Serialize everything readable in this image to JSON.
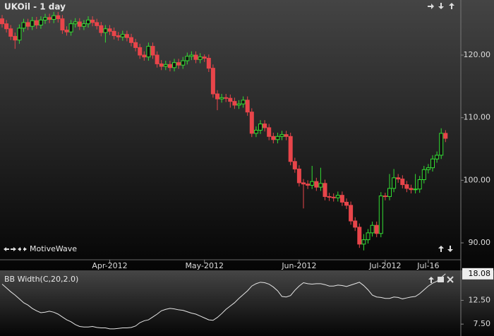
{
  "chart_data": [
    {
      "type": "candlestick",
      "title": "UKOil - 1 day",
      "footer": "MotiveWave",
      "up_color": "#33dd33",
      "down_color": "#e8454a",
      "categories": [
        null,
        null,
        null,
        null,
        null,
        null,
        null,
        null,
        null,
        null,
        null,
        null,
        null,
        null,
        null,
        null,
        null,
        null,
        null,
        null,
        null,
        null,
        null,
        null,
        null,
        "Apr-2012",
        null,
        null,
        null,
        null,
        null,
        null,
        null,
        null,
        null,
        null,
        null,
        null,
        null,
        null,
        null,
        null,
        null,
        null,
        null,
        null,
        null,
        "May-2012",
        null,
        null,
        null,
        null,
        null,
        null,
        null,
        null,
        null,
        null,
        null,
        null,
        null,
        null,
        null,
        null,
        null,
        null,
        null,
        null,
        null,
        "Jun-2012",
        null,
        null,
        null,
        null,
        null,
        null,
        null,
        null,
        null,
        null,
        null,
        null,
        null,
        null,
        null,
        null,
        null,
        null,
        null,
        "Jul-2012",
        null,
        null,
        null,
        null,
        null,
        null,
        null,
        null,
        null,
        "Jul-16",
        null,
        null,
        null,
        null
      ],
      "open": [
        125.8,
        125.0,
        124.2,
        123.0,
        122.4,
        124.3,
        125.2,
        124.6,
        125.5,
        124.8,
        125.6,
        126.0,
        125.7,
        126.3,
        125.8,
        124.0,
        123.7,
        125.0,
        125.3,
        124.6,
        125.0,
        125.6,
        125.2,
        124.7,
        123.6,
        124.2,
        123.8,
        123.1,
        122.9,
        123.3,
        122.8,
        122.0,
        121.2,
        120.0,
        119.7,
        121.4,
        120.0,
        118.6,
        118.2,
        118.5,
        118.0,
        118.8,
        118.4,
        119.1,
        119.8,
        120.0,
        119.3,
        119.7,
        119.5,
        117.9,
        113.8,
        113.0,
        113.2,
        113.1,
        112.6,
        112.0,
        112.2,
        112.8,
        110.9,
        107.5,
        108.0,
        109.0,
        108.4,
        107.0,
        106.5,
        107.0,
        107.3,
        107.0,
        103.0,
        101.8,
        99.6,
        99.4,
        99.2,
        99.8,
        98.9,
        99.5,
        97.4,
        97.3,
        97.2,
        97.6,
        96.5,
        96.0,
        93.5,
        92.5,
        89.8,
        90.5,
        91.6,
        92.8,
        91.5,
        97.5,
        97.4,
        98.7,
        100.4,
        100.2,
        99.3,
        98.7,
        98.5,
        98.6,
        100.1,
        101.7,
        102.0,
        103.4,
        104.0,
        107.5
      ],
      "high": [
        126.4,
        125.6,
        124.8,
        123.6,
        124.9,
        125.8,
        125.8,
        126.1,
        126.1,
        126.2,
        126.6,
        126.6,
        126.9,
        126.9,
        126.4,
        124.6,
        125.6,
        125.9,
        125.9,
        125.6,
        126.2,
        126.2,
        125.8,
        125.3,
        124.8,
        124.8,
        124.4,
        123.7,
        123.9,
        123.9,
        123.4,
        122.6,
        121.8,
        120.6,
        122.0,
        122.0,
        120.6,
        119.2,
        119.1,
        119.1,
        119.4,
        119.4,
        119.7,
        120.4,
        120.6,
        120.6,
        120.3,
        120.1,
        120.1,
        118.5,
        114.4,
        113.8,
        113.8,
        113.7,
        113.2,
        112.8,
        113.4,
        113.4,
        111.5,
        108.6,
        109.6,
        109.6,
        109.0,
        107.6,
        107.6,
        107.9,
        107.9,
        107.6,
        103.6,
        102.4,
        100.2,
        100.0,
        102.3,
        100.4,
        102.0,
        100.1,
        98.0,
        97.9,
        98.2,
        98.2,
        97.1,
        96.6,
        94.1,
        93.1,
        91.4,
        92.2,
        93.4,
        93.4,
        98.1,
        98.0,
        101.0,
        101.8,
        101.0,
        100.8,
        99.9,
        99.3,
        101.0,
        100.7,
        102.3,
        102.6,
        104.0,
        104.6,
        108.3,
        108.0
      ],
      "low": [
        124.4,
        123.6,
        122.4,
        121.0,
        121.8,
        123.7,
        124.0,
        124.0,
        124.2,
        124.2,
        125.0,
        125.1,
        125.1,
        125.2,
        123.4,
        123.1,
        123.1,
        124.4,
        124.0,
        124.0,
        124.4,
        124.6,
        124.1,
        123.0,
        122.0,
        123.2,
        122.5,
        122.3,
        122.3,
        122.2,
        121.4,
        120.6,
        119.4,
        119.1,
        119.1,
        119.4,
        118.0,
        117.6,
        117.6,
        117.4,
        117.4,
        117.8,
        117.8,
        118.5,
        119.2,
        118.7,
        118.7,
        118.9,
        117.3,
        113.2,
        111.2,
        112.4,
        112.5,
        111.6,
        111.4,
        111.4,
        111.6,
        110.3,
        106.9,
        106.9,
        107.4,
        107.8,
        106.4,
        105.9,
        105.9,
        106.4,
        106.4,
        102.4,
        101.2,
        99.0,
        95.5,
        98.6,
        98.6,
        98.3,
        98.3,
        96.8,
        96.7,
        96.6,
        96.6,
        95.9,
        95.4,
        92.9,
        91.9,
        89.2,
        88.8,
        89.9,
        91.0,
        90.9,
        90.9,
        96.8,
        96.8,
        98.1,
        99.6,
        98.7,
        98.1,
        97.9,
        97.9,
        98.0,
        99.5,
        101.1,
        101.4,
        102.8,
        103.4,
        106.1
      ],
      "close": [
        125.0,
        124.2,
        123.0,
        122.4,
        124.3,
        125.2,
        124.6,
        125.5,
        124.8,
        125.6,
        126.0,
        125.7,
        126.3,
        125.8,
        124.0,
        123.7,
        125.0,
        125.3,
        124.6,
        125.0,
        125.6,
        125.2,
        124.7,
        123.6,
        124.2,
        123.8,
        123.1,
        122.9,
        123.3,
        122.8,
        122.0,
        121.2,
        120.0,
        119.7,
        121.4,
        120.0,
        118.6,
        118.2,
        118.5,
        118.0,
        118.8,
        118.4,
        119.1,
        119.8,
        120.0,
        119.3,
        119.7,
        119.5,
        117.9,
        113.8,
        113.0,
        113.2,
        113.1,
        112.6,
        112.0,
        112.2,
        112.8,
        110.9,
        107.5,
        108.0,
        109.0,
        108.4,
        107.0,
        106.5,
        107.0,
        107.3,
        107.0,
        103.0,
        101.8,
        99.6,
        99.4,
        99.2,
        99.8,
        98.9,
        99.5,
        97.4,
        97.3,
        97.2,
        97.6,
        96.5,
        96.0,
        93.5,
        92.5,
        89.8,
        90.5,
        91.6,
        92.8,
        91.5,
        97.5,
        97.4,
        98.7,
        100.4,
        100.2,
        99.3,
        98.7,
        98.5,
        98.6,
        100.1,
        101.7,
        102.0,
        103.4,
        104.0,
        107.5,
        106.7
      ],
      "ylim": [
        87.3,
        128.8
      ],
      "yticks": [
        {
          "value": 90,
          "label": "90.00"
        },
        {
          "value": 100,
          "label": "100.00"
        },
        {
          "value": 110,
          "label": "110.00"
        },
        {
          "value": 120,
          "label": "120.00"
        }
      ]
    },
    {
      "type": "line",
      "title": "BB Width(C,20,2.0)",
      "color": "#e6e6e6",
      "values": [
        15.9,
        15.1,
        14.3,
        13.6,
        12.8,
        12.0,
        11.5,
        10.8,
        10.3,
        9.9,
        10.0,
        10.2,
        10.0,
        9.6,
        9.0,
        8.4,
        8.0,
        7.4,
        7.0,
        6.9,
        6.9,
        7.0,
        6.8,
        6.7,
        6.7,
        6.5,
        6.5,
        6.6,
        6.7,
        6.7,
        6.8,
        7.1,
        7.8,
        8.2,
        8.4,
        9.0,
        9.6,
        10.3,
        10.6,
        10.8,
        10.7,
        10.5,
        10.4,
        10.1,
        9.8,
        9.6,
        9.2,
        8.8,
        8.4,
        8.3,
        8.9,
        9.7,
        10.6,
        11.3,
        12.0,
        12.9,
        13.7,
        14.5,
        15.5,
        16.0,
        16.3,
        16.2,
        15.9,
        15.3,
        14.5,
        13.3,
        13.2,
        13.5,
        14.6,
        15.5,
        16.2,
        16.0,
        15.9,
        16.0,
        16.0,
        15.8,
        15.5,
        15.5,
        15.7,
        15.6,
        15.4,
        15.7,
        16.0,
        16.3,
        15.6,
        14.7,
        13.6,
        13.2,
        13.1,
        12.9,
        12.9,
        13.2,
        13.1,
        12.8,
        13.0,
        13.2,
        13.3,
        13.9,
        14.7,
        15.5,
        16.1,
        16.5,
        17.3,
        18.08
      ],
      "ylim": [
        5.0,
        18.5
      ],
      "yticks": [
        {
          "value": 7.5,
          "label": "7.50"
        },
        {
          "value": 12.5,
          "label": "12.50"
        }
      ]
    }
  ]
}
